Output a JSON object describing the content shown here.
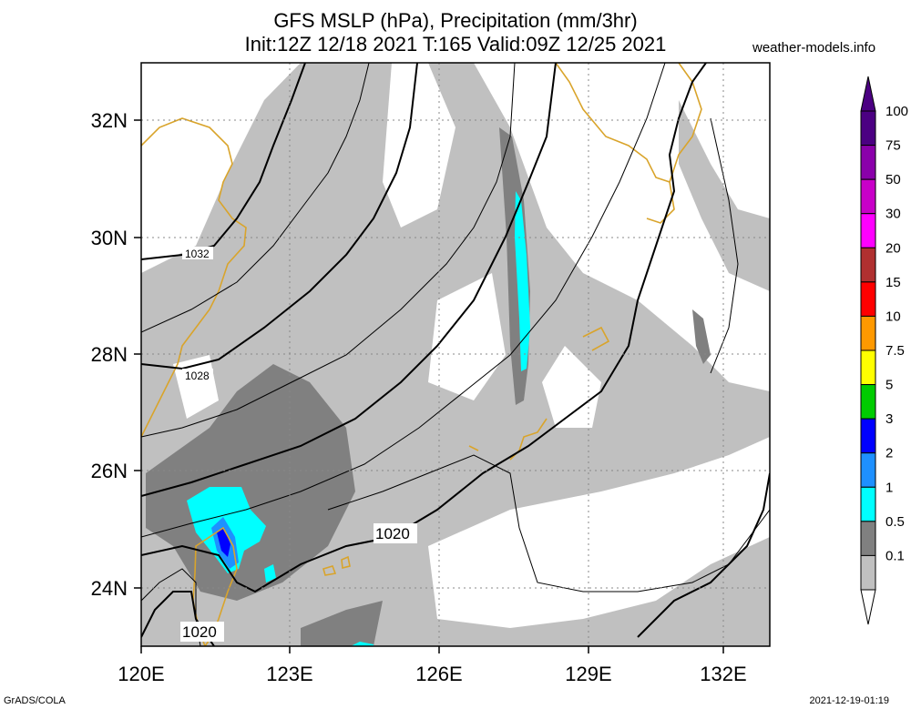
{
  "header": {
    "title_line1": "GFS MSLP (hPa), Precipitation (mm/3hr)",
    "title_line2": "Init:12Z 12/18 2021 T:165 Valid:09Z 12/25 2021",
    "site": "weather-models.info"
  },
  "axes": {
    "x_ticks": [
      "120E",
      "123E",
      "126E",
      "129E",
      "132E"
    ],
    "y_ticks": [
      "32N",
      "30N",
      "28N",
      "26N",
      "24N"
    ]
  },
  "isobar_labels": [
    "1032",
    "1028",
    "1020",
    "1020"
  ],
  "colorbar": {
    "levels": [
      "100",
      "75",
      "50",
      "30",
      "20",
      "15",
      "10",
      "7.5",
      "5",
      "3",
      "2",
      "1",
      "0.5",
      "0.1"
    ],
    "colors": [
      "#4b0082",
      "#8a00aa",
      "#c800c8",
      "#ff00ff",
      "#b03030",
      "#ff0000",
      "#ff9900",
      "#ffff00",
      "#00cc00",
      "#0000ff",
      "#1e90ff",
      "#00ffff",
      "#808080",
      "#c0c0c0"
    ]
  },
  "footer": {
    "left": "GrADS/COLA",
    "right": "2021-12-19-01:19"
  }
}
